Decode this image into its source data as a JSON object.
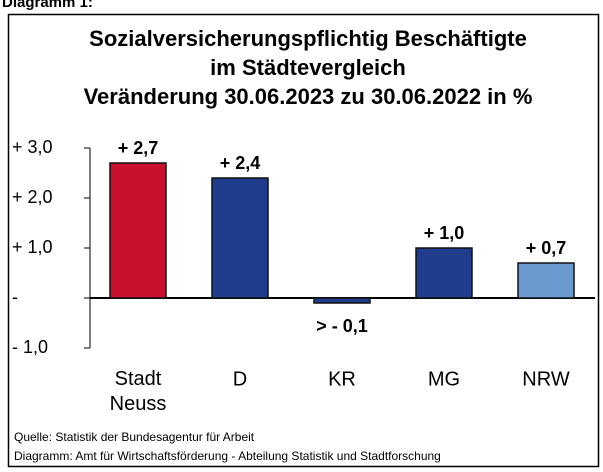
{
  "header": "Diagramm 1:",
  "chart_data": {
    "type": "bar",
    "title": [
      "Sozialversicherungspflichtig Beschäftigte",
      "im Städtevergleich",
      "Veränderung 30.06.2023 zu 30.06.2022 in %"
    ],
    "categories": [
      "Stadt Neuss",
      "D",
      "KR",
      "MG",
      "NRW"
    ],
    "values": [
      2.7,
      2.4,
      -0.1,
      1.0,
      0.7
    ],
    "value_labels": [
      "+ 2,7",
      "+ 2,4",
      "> - 0,1",
      "+ 1,0",
      "+ 0,7"
    ],
    "colors": [
      "#c8102e",
      "#1f3d8c",
      "#1f3d8c",
      "#1f3d8c",
      "#6a9ad0"
    ],
    "ylim": [
      -1,
      3
    ],
    "yticks": [
      {
        "value": 3,
        "label": "+ 3,0"
      },
      {
        "value": 2,
        "label": "+ 2,0"
      },
      {
        "value": 1,
        "label": "+ 1,0"
      },
      {
        "value": 0,
        "label": "-"
      },
      {
        "value": -1,
        "label": "- 1,0"
      }
    ]
  },
  "footer": [
    "Quelle: Statistik der Bundesagentur für Arbeit",
    "Diagramm: Amt für Wirtschaftsförderung - Abteilung Statistik und Stadtforschung"
  ]
}
